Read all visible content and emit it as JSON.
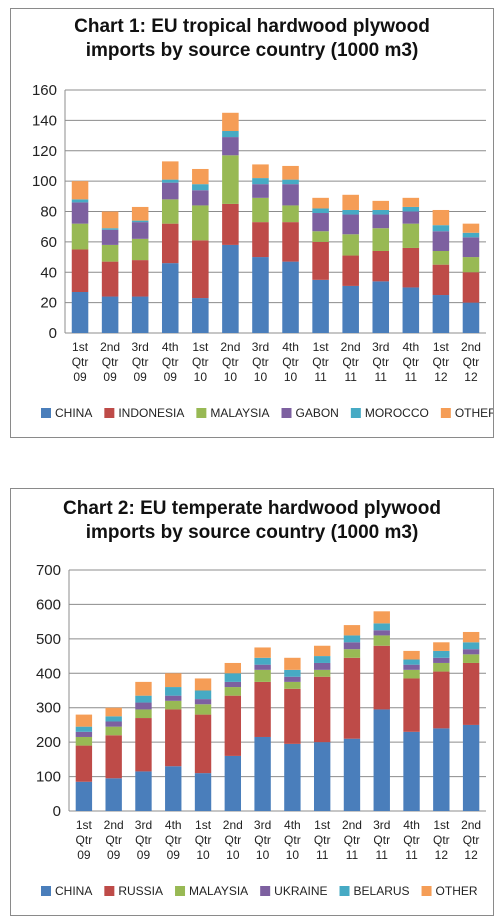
{
  "chart_data": [
    {
      "type": "bar",
      "stacked": true,
      "title": "Chart 1: EU tropical hardwood plywood\nimports by source country (1000 m3)",
      "categories": [
        [
          "1st",
          "Qtr",
          "09"
        ],
        [
          "2nd",
          "Qtr",
          "09"
        ],
        [
          "3rd",
          "Qtr",
          "09"
        ],
        [
          "4th",
          "Qtr",
          "09"
        ],
        [
          "1st",
          "Qtr",
          "10"
        ],
        [
          "2nd",
          "Qtr",
          "10"
        ],
        [
          "3rd",
          "Qtr",
          "10"
        ],
        [
          "4th",
          "Qtr",
          "10"
        ],
        [
          "1st",
          "Qtr",
          "11"
        ],
        [
          "2nd",
          "Qtr",
          "11"
        ],
        [
          "3rd",
          "Qtr",
          "11"
        ],
        [
          "4th",
          "Qtr",
          "11"
        ],
        [
          "1st",
          "Qtr",
          "12"
        ],
        [
          "2nd",
          "Qtr",
          "12"
        ]
      ],
      "ylim": [
        0,
        160
      ],
      "yticks": [
        "0",
        "20",
        "40",
        "60",
        "80",
        "100",
        "120",
        "140",
        "160"
      ],
      "grid": true,
      "legend_position": "bottom",
      "series": [
        {
          "name": "CHINA",
          "color": "#4a7ebb",
          "values": [
            27,
            24,
            24,
            46,
            23,
            58,
            50,
            47,
            35,
            31,
            34,
            30,
            25,
            20
          ]
        },
        {
          "name": "INDONESIA",
          "color": "#be4b48",
          "values": [
            28,
            23,
            24,
            26,
            38,
            27,
            23,
            26,
            25,
            20,
            20,
            26,
            20,
            20
          ]
        },
        {
          "name": "MALAYSIA",
          "color": "#98b954",
          "values": [
            17,
            11,
            14,
            16,
            23,
            32,
            16,
            11,
            7,
            14,
            15,
            16,
            9,
            10
          ]
        },
        {
          "name": "GABON",
          "color": "#7d60a0",
          "values": [
            14,
            10,
            11,
            11,
            10,
            12,
            9,
            14,
            12,
            13,
            9,
            8,
            13,
            13
          ]
        },
        {
          "name": "MOROCCO",
          "color": "#46aac4",
          "values": [
            2,
            1,
            1,
            2,
            4,
            4,
            4,
            3,
            3,
            3,
            3,
            3,
            4,
            3
          ]
        },
        {
          "name": "OTHER",
          "color": "#f59d56",
          "values": [
            12,
            11,
            9,
            12,
            10,
            12,
            9,
            9,
            7,
            10,
            6,
            6,
            10,
            6
          ]
        }
      ]
    },
    {
      "type": "bar",
      "stacked": true,
      "title": "Chart 2: EU temperate hardwood plywood\nimports by source country (1000 m3)",
      "categories": [
        [
          "1st",
          "Qtr",
          "09"
        ],
        [
          "2nd",
          "Qtr",
          "09"
        ],
        [
          "3rd",
          "Qtr",
          "09"
        ],
        [
          "4th",
          "Qtr",
          "09"
        ],
        [
          "1st",
          "Qtr",
          "10"
        ],
        [
          "2nd",
          "Qtr",
          "10"
        ],
        [
          "3rd",
          "Qtr",
          "10"
        ],
        [
          "4th",
          "Qtr",
          "10"
        ],
        [
          "1st",
          "Qtr",
          "11"
        ],
        [
          "2nd",
          "Qtr",
          "11"
        ],
        [
          "3rd",
          "Qtr",
          "11"
        ],
        [
          "4th",
          "Qtr",
          "11"
        ],
        [
          "1st",
          "Qtr",
          "12"
        ],
        [
          "2nd",
          "Qtr",
          "12"
        ]
      ],
      "ylim": [
        0,
        700
      ],
      "yticks": [
        "0",
        "100",
        "200",
        "300",
        "400",
        "500",
        "600",
        "700"
      ],
      "grid": true,
      "legend_position": "bottom",
      "series": [
        {
          "name": "CHINA",
          "color": "#4a7ebb",
          "values": [
            85,
            95,
            115,
            130,
            110,
            160,
            215,
            195,
            200,
            210,
            295,
            230,
            240,
            250
          ]
        },
        {
          "name": "RUSSIA",
          "color": "#be4b48",
          "values": [
            105,
            125,
            155,
            165,
            170,
            175,
            160,
            160,
            190,
            235,
            185,
            155,
            165,
            180
          ]
        },
        {
          "name": "MALAYSIA",
          "color": "#98b954",
          "values": [
            25,
            25,
            25,
            25,
            30,
            25,
            35,
            20,
            20,
            25,
            30,
            25,
            25,
            25
          ]
        },
        {
          "name": "UKRAINE",
          "color": "#7d60a0",
          "values": [
            15,
            15,
            20,
            15,
            15,
            15,
            15,
            15,
            20,
            20,
            15,
            15,
            15,
            15
          ]
        },
        {
          "name": "BELARUS",
          "color": "#46aac4",
          "values": [
            15,
            15,
            20,
            25,
            25,
            25,
            20,
            20,
            20,
            20,
            20,
            15,
            20,
            20
          ]
        },
        {
          "name": "OTHER",
          "color": "#f59d56",
          "values": [
            35,
            25,
            40,
            40,
            35,
            30,
            30,
            35,
            30,
            30,
            35,
            25,
            25,
            30
          ]
        }
      ]
    }
  ]
}
